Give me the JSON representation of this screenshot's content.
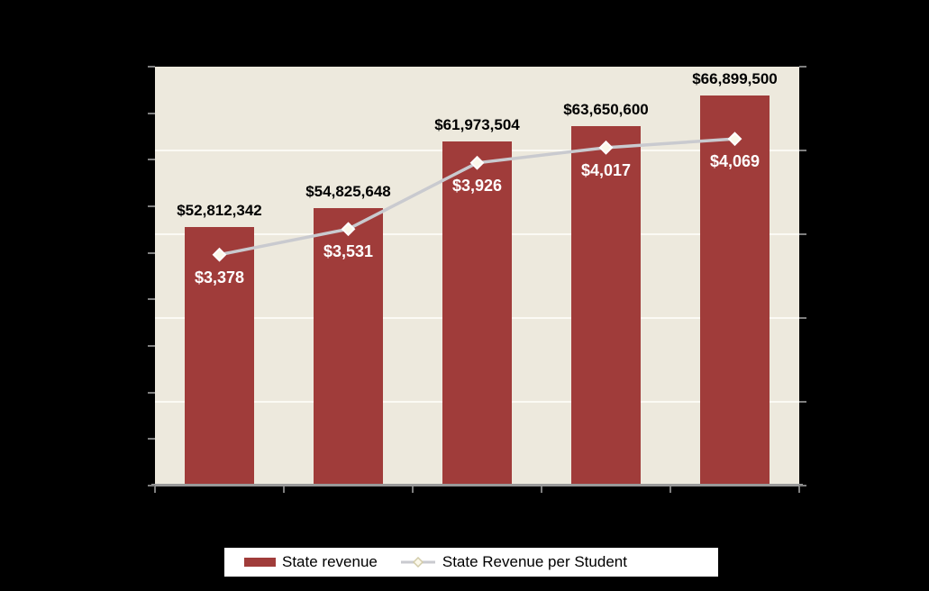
{
  "chart_data": {
    "type": "bar",
    "title": "",
    "xlabel": "",
    "ylabel": "",
    "categories": [
      "",
      "",
      "",
      "",
      ""
    ],
    "series": [
      {
        "name": "State revenue",
        "type": "bar",
        "axis": "left",
        "values": [
          52812342,
          54825648,
          61973504,
          63650600,
          66899500
        ],
        "labels": [
          "$52,812,342",
          "$54,825,648",
          "$61,973,504",
          "$63,650,600",
          "$66,899,500"
        ]
      },
      {
        "name": "State Revenue per Student",
        "type": "line",
        "axis": "right",
        "marker": "diamond",
        "values": [
          3378,
          3531,
          3926,
          4017,
          4069
        ],
        "labels": [
          "$3,378",
          "$3,531",
          "$3,926",
          "$4,017",
          "$4,069"
        ]
      }
    ],
    "left_axis": {
      "min": 25000000,
      "max": 70000000,
      "step": 5000000,
      "tick_labels_visible": false
    },
    "right_axis": {
      "min": 2000,
      "max": 4500,
      "step": 500,
      "tick_labels_visible": false
    },
    "x_axis": {
      "tick_labels_visible": false,
      "tick_count": 6
    },
    "grid": "horizontal-major",
    "legend_position": "bottom"
  },
  "colors": {
    "page_background": "#000000",
    "plot_background": "#EDE9DD",
    "bar_fill": "#A03C3A",
    "line_stroke": "#C9CACF",
    "marker_fill": "#FBF8EA",
    "marker_stroke": "#FFFFFF",
    "gridline": "#FBFAF4",
    "axis_line": "#999999",
    "tick": "#7F7F7F",
    "bar_label_text": "#000000",
    "line_label_text": "#FFFFFF",
    "legend_background": "#FFFFFF",
    "legend_text": "#000000",
    "legend_marker_stroke": "#D2CCAA"
  }
}
